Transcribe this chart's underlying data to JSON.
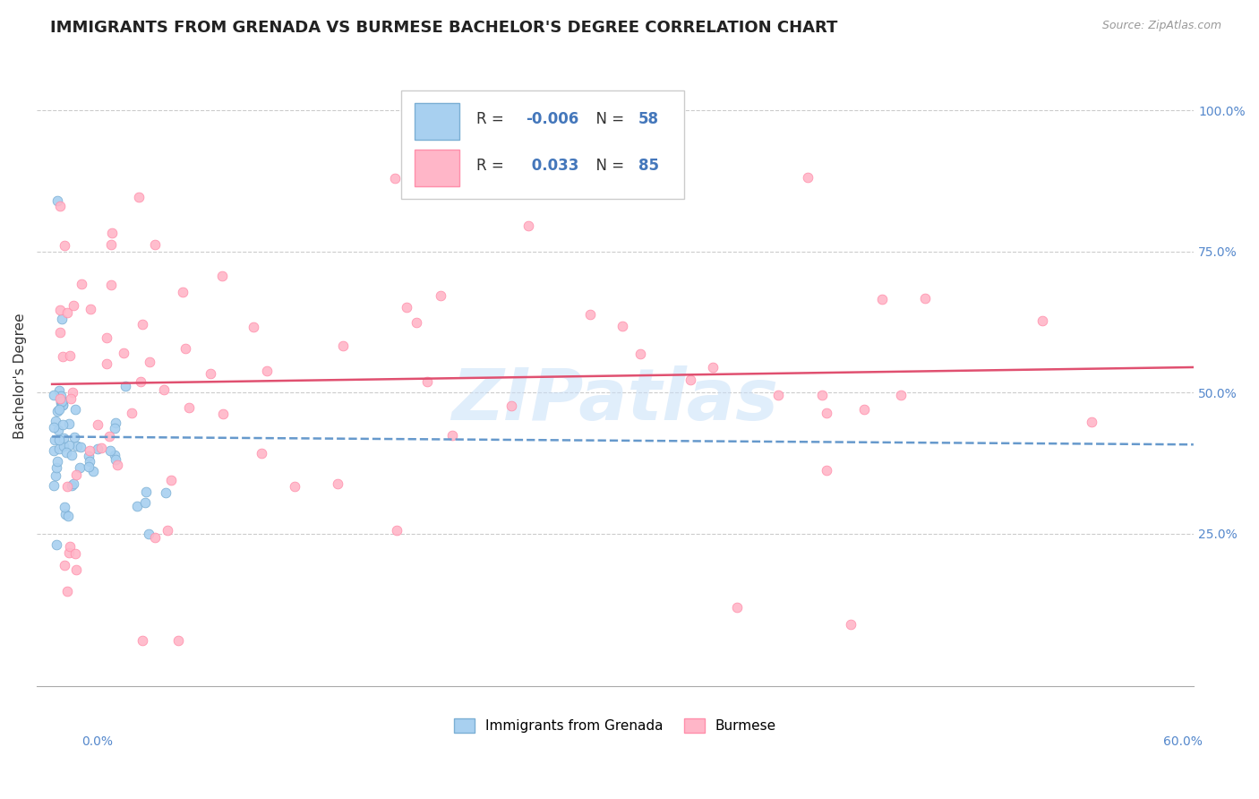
{
  "title": "IMMIGRANTS FROM GRENADA VS BURMESE BACHELOR'S DEGREE CORRELATION CHART",
  "source_text": "Source: ZipAtlas.com",
  "ylabel": "Bachelor's Degree",
  "watermark": "ZIPatlas",
  "blue_color": "#A8D0F0",
  "blue_edge": "#7BAFD4",
  "pink_color": "#FFB6C8",
  "pink_edge": "#FF8FAB",
  "blue_line_color": "#6699CC",
  "pink_line_color": "#E05070",
  "legend_text_color": "#4477BB",
  "grid_color": "#CCCCCC",
  "xlim": [
    0.0,
    0.6
  ],
  "ylim": [
    -0.02,
    1.08
  ],
  "blue_trend_x0": 0.0,
  "blue_trend_y0": 0.422,
  "blue_trend_x1": 0.6,
  "blue_trend_y1": 0.408,
  "pink_trend_x0": 0.0,
  "pink_trend_y0": 0.515,
  "pink_trend_x1": 0.6,
  "pink_trend_y1": 0.545
}
